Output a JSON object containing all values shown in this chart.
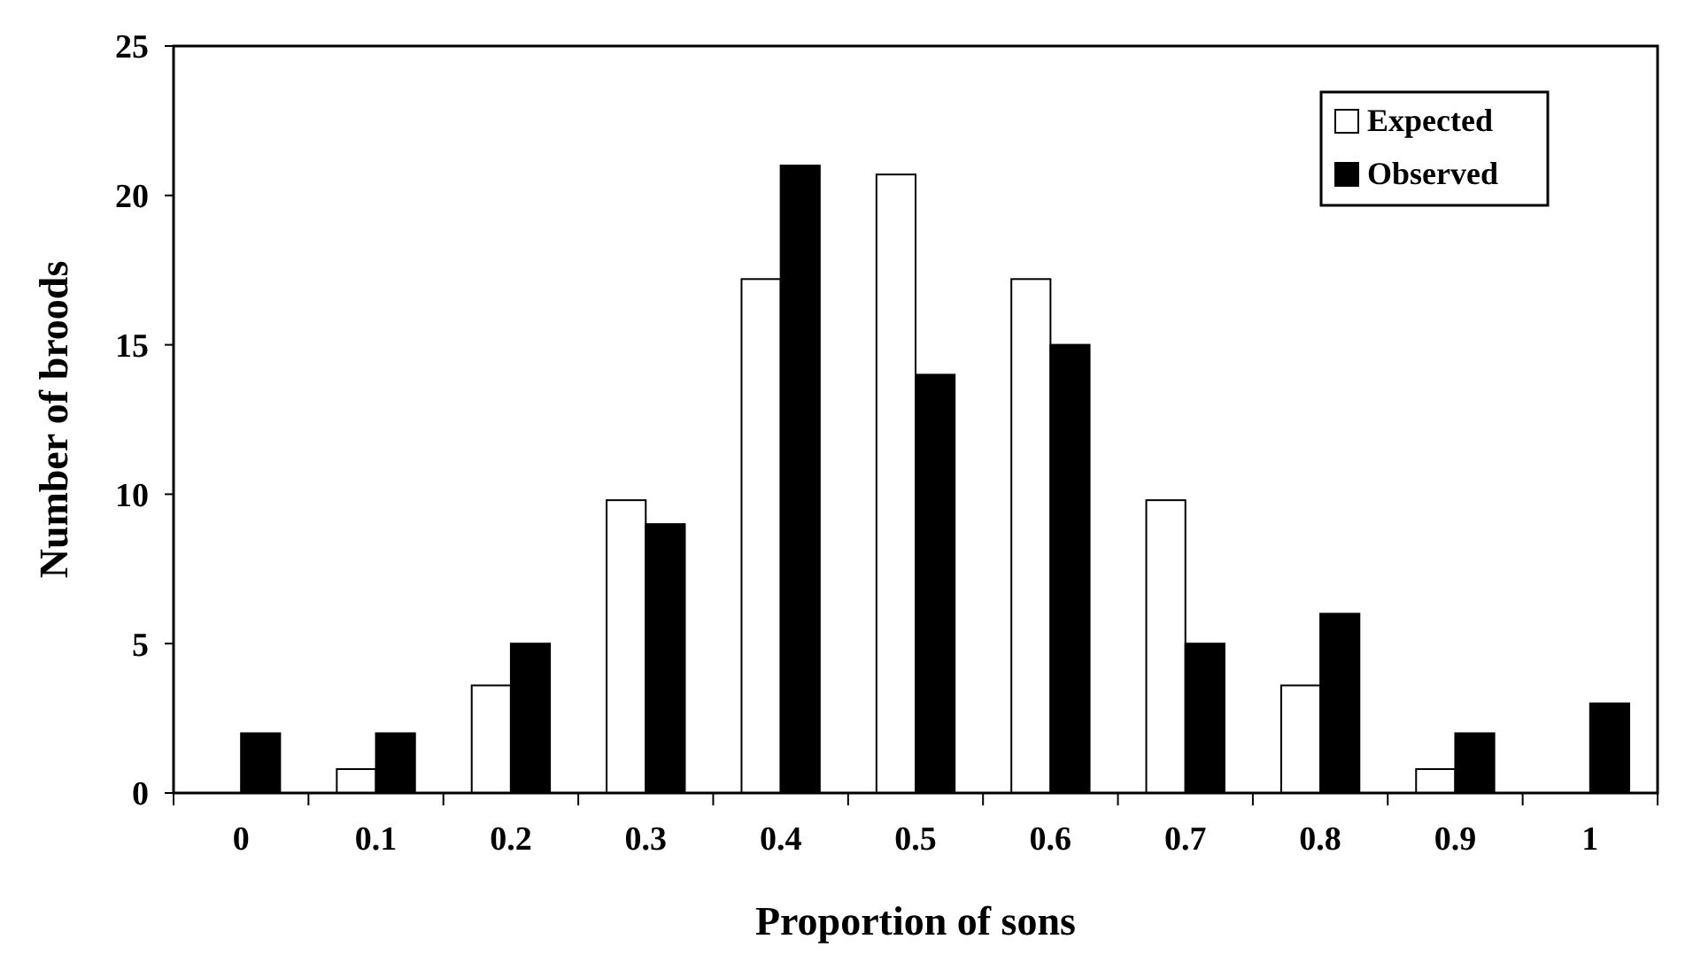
{
  "chart_data": {
    "type": "bar",
    "xlabel": "Proportion of sons",
    "ylabel": "Number of broods",
    "categories": [
      "0",
      "0.1",
      "0.2",
      "0.3",
      "0.4",
      "0.5",
      "0.6",
      "0.7",
      "0.8",
      "0.9",
      "1"
    ],
    "series": [
      {
        "name": "Expected",
        "color": "#ffffff",
        "values": [
          null,
          0.8,
          3.6,
          9.8,
          17.2,
          20.7,
          17.2,
          9.8,
          3.6,
          0.8,
          null
        ]
      },
      {
        "name": "Observed",
        "color": "#000000",
        "values": [
          2,
          2,
          5,
          9,
          21,
          14,
          15,
          5,
          6,
          2,
          3
        ]
      }
    ],
    "ylim": [
      0,
      25
    ],
    "yticks": [
      0,
      5,
      10,
      15,
      20,
      25
    ],
    "grid": false,
    "legend": "top right"
  }
}
